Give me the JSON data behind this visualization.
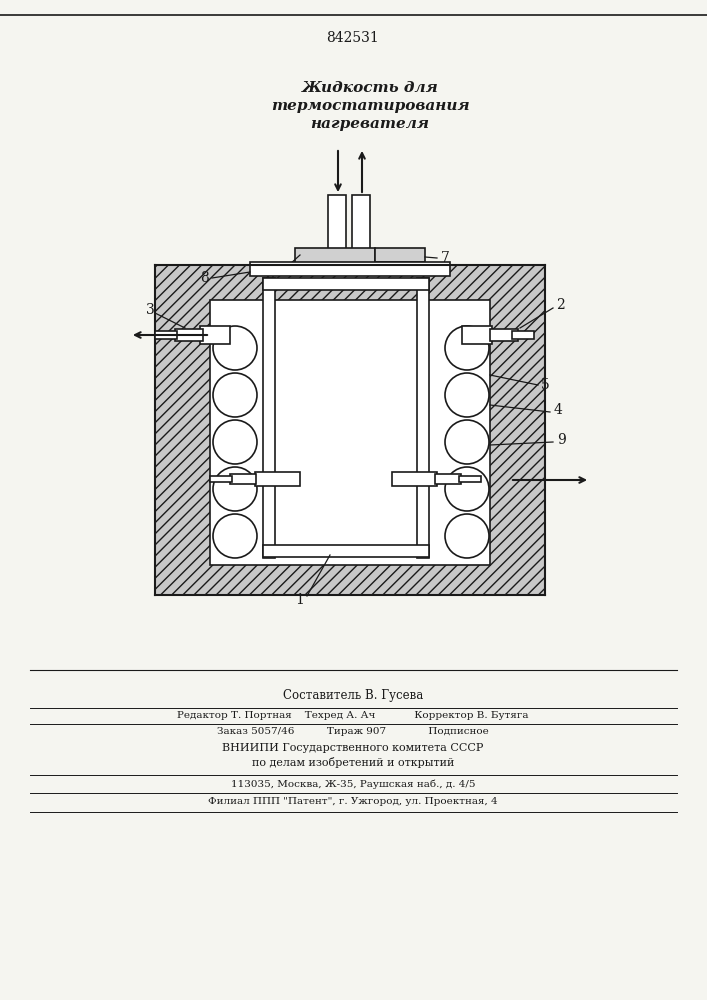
{
  "patent_number": "842531",
  "title_line1": "Жидкость для",
  "title_line2": "термостатирования",
  "title_line3": "нагревателя",
  "footer_line1": "Составитель В. Гусева",
  "footer_line2": "Редактор Т. Портная    Техред А. Ач            Корректор В. Бутяга",
  "footer_line3": "Заказ 5057/46          Тираж 907             Подписное",
  "footer_line4": "ВНИИПИ Государственного комитета СССР",
  "footer_line5": "по делам изобретений и открытий",
  "footer_line6": "113035, Москва, Ж-35, Раушская наб., д. 4/5",
  "footer_line7": "Филиал ППП \"Патент\", г. Ужгород, ул. Проектная, 4",
  "bg_color": "#f5f5f0",
  "line_color": "#1a1a1a",
  "hatch_color": "#555555"
}
